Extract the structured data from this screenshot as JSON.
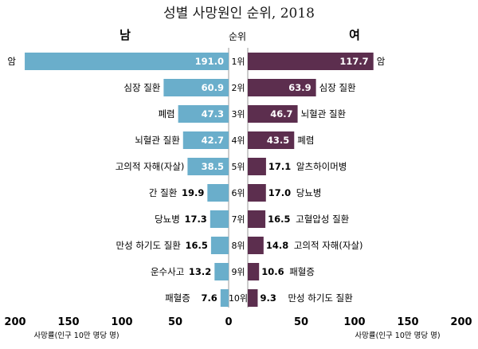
{
  "chart_data": {
    "type": "bar",
    "title": "성별 사망원인 순위, 2018",
    "rank_header": "순위",
    "ranks": [
      "1위",
      "2위",
      "3위",
      "4위",
      "5위",
      "6위",
      "7위",
      "8위",
      "9위",
      "10위"
    ],
    "xlim": [
      0,
      200
    ],
    "ticks": [
      "200",
      "150",
      "100",
      "50",
      "0",
      "50",
      "100",
      "150",
      "200"
    ],
    "tick_values": [
      0,
      50,
      100,
      150,
      200
    ],
    "unit_label": "사망률(인구 10만 명당 명)",
    "colors": {
      "male": "#6aaecb",
      "female": "#5c2e4e"
    },
    "series": [
      {
        "name": "남",
        "side": "left",
        "categories": [
          "암",
          "심장 질환",
          "폐렴",
          "뇌혈관 질환",
          "고의적 자해(자살)",
          "간 질환",
          "당뇨병",
          "만성 하기도 질환",
          "운수사고",
          "패혈증"
        ],
        "values": [
          191.0,
          60.9,
          47.3,
          42.7,
          38.5,
          19.9,
          17.3,
          16.5,
          13.2,
          7.6
        ],
        "labels": [
          "191.0",
          "60.9",
          "47.3",
          "42.7",
          "38.5",
          "19.9",
          "17.3",
          "16.5",
          "13.2",
          "7.6"
        ]
      },
      {
        "name": "여",
        "side": "right",
        "categories": [
          "암",
          "심장 질환",
          "뇌혈관 질환",
          "폐렴",
          "알츠하이머병",
          "당뇨병",
          "고혈압성 질환",
          "고의적 자해(자살)",
          "패혈증",
          "만성 하기도 질환"
        ],
        "values": [
          117.7,
          63.9,
          46.7,
          43.5,
          17.1,
          17.0,
          16.5,
          14.8,
          10.6,
          9.3
        ],
        "labels": [
          "117.7",
          "63.9",
          "46.7",
          "43.5",
          "17.1",
          "17.0",
          "16.5",
          "14.8",
          "10.6",
          "9.3"
        ]
      }
    ]
  }
}
